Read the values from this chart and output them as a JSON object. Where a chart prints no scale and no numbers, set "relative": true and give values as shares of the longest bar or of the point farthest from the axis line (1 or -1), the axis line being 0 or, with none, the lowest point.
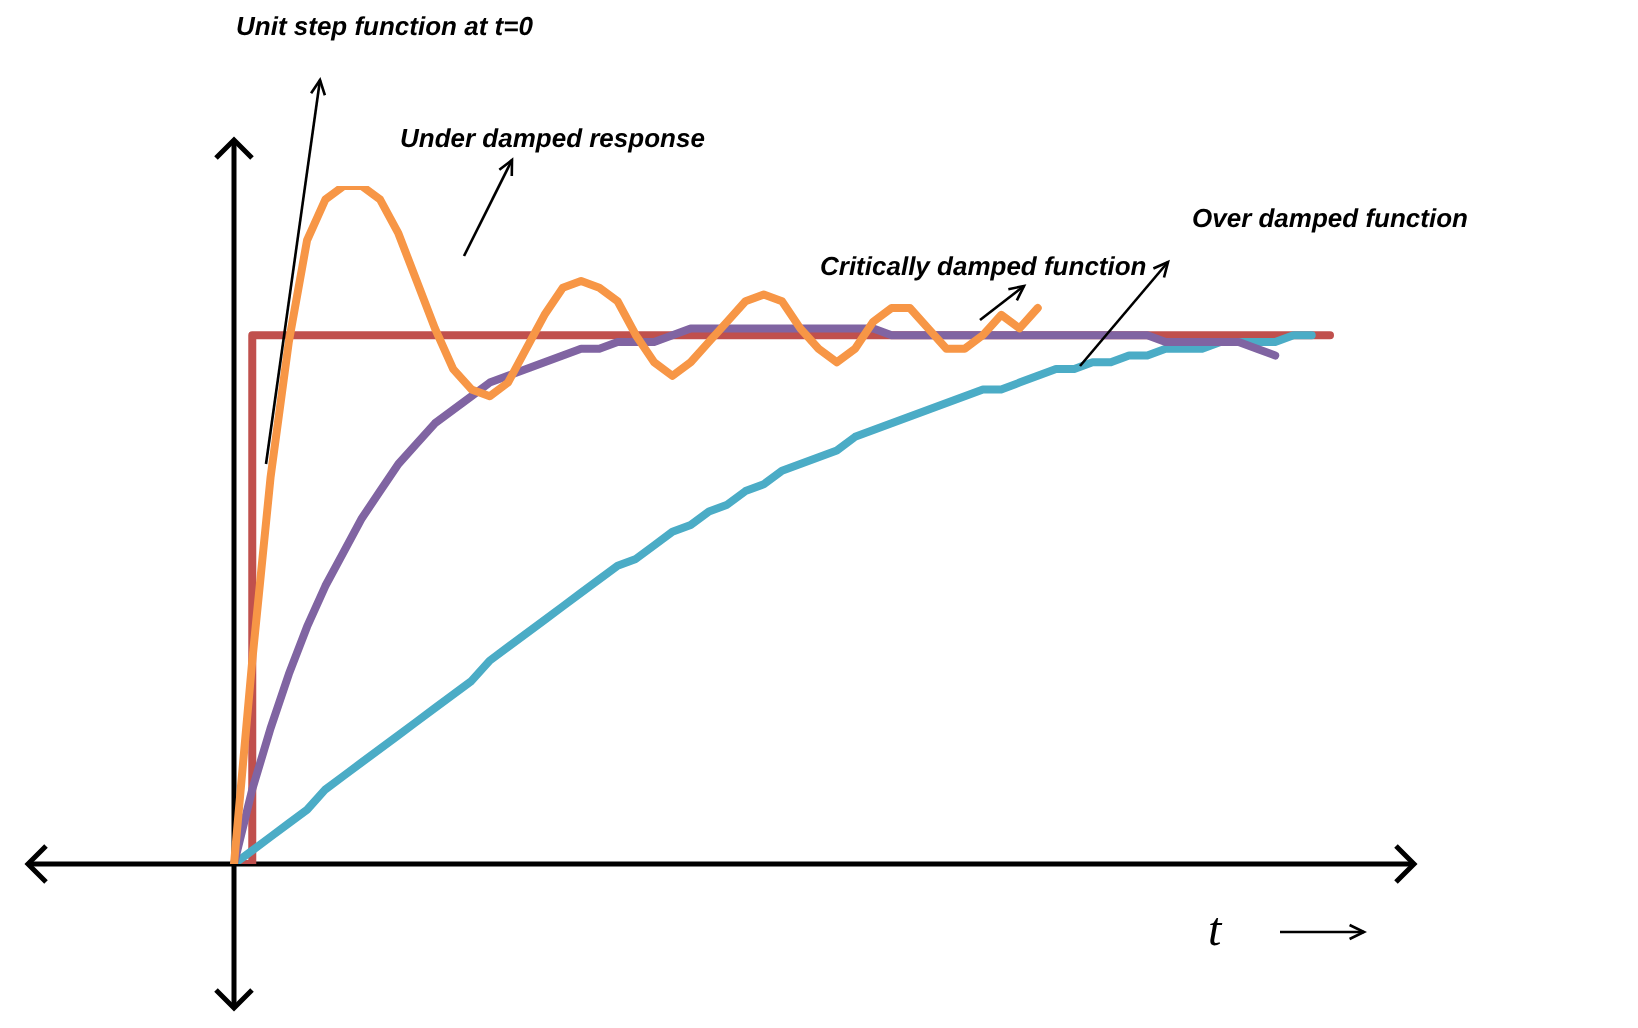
{
  "chart_data": {
    "type": "line",
    "relative": true,
    "marker": "none",
    "legend": false,
    "xlabel": "t",
    "categories": [
      null,
      null,
      null,
      null,
      null,
      null,
      null,
      null,
      null,
      null,
      null,
      null,
      null,
      null,
      null,
      null,
      null,
      null,
      null,
      null,
      null,
      null,
      null,
      null,
      null,
      null,
      null,
      null,
      null,
      null,
      null,
      null,
      null,
      null,
      null,
      null,
      null,
      null,
      null,
      null,
      null,
      null,
      null,
      null,
      null,
      null,
      null,
      null,
      null,
      null,
      null,
      null,
      null,
      null,
      null,
      null,
      null,
      null,
      null,
      null,
      null
    ],
    "series": [
      {
        "type": "step",
        "color": "#c0504d",
        "values": [
          0,
          0.78,
          0.78,
          0.78,
          0.78,
          0.78,
          0.78,
          0.78,
          0.78,
          0.78,
          0.78,
          0.78,
          0.78,
          0.78,
          0.78,
          0.78,
          0.78,
          0.78,
          0.78,
          0.78,
          0.78,
          0.78,
          0.78,
          0.78,
          0.78,
          0.78,
          0.78,
          0.78,
          0.78,
          0.78,
          0.78,
          0.78,
          0.78,
          0.78,
          0.78,
          0.78,
          0.78,
          0.78,
          0.78,
          0.78,
          0.78,
          0.78,
          0.78,
          0.78,
          0.78,
          0.78,
          0.78,
          0.78,
          0.78,
          0.78,
          0.78,
          0.78,
          0.78,
          0.78,
          0.78,
          0.78,
          0.78,
          0.78,
          0.78,
          0.78,
          0.78
        ]
      },
      {
        "color": "#4bacc6",
        "values": [
          0,
          0.02,
          0.04,
          0.06,
          0.08,
          0.11,
          0.13,
          0.15,
          0.17,
          0.19,
          0.21,
          0.23,
          0.25,
          0.27,
          0.3,
          0.32,
          0.34,
          0.36,
          0.38,
          0.4,
          0.42,
          0.44,
          0.45,
          0.47,
          0.49,
          0.5,
          0.52,
          0.53,
          0.55,
          0.56,
          0.58,
          0.59,
          0.6,
          0.61,
          0.63,
          0.64,
          0.65,
          0.66,
          0.67,
          0.68,
          0.69,
          0.7,
          0.7,
          0.71,
          0.72,
          0.73,
          0.73,
          0.74,
          0.74,
          0.75,
          0.75,
          0.76,
          0.76,
          0.76,
          0.77,
          0.77,
          0.77,
          0.77,
          0.78,
          0.78,
          null
        ]
      },
      {
        "color": "#8064a2",
        "values": [
          0,
          0.11,
          0.2,
          0.28,
          0.35,
          0.41,
          0.46,
          0.51,
          0.55,
          0.59,
          0.62,
          0.65,
          0.67,
          0.69,
          0.71,
          0.72,
          0.73,
          0.74,
          0.75,
          0.76,
          0.76,
          0.77,
          0.77,
          0.77,
          0.78,
          0.79,
          0.79,
          0.79,
          0.79,
          0.79,
          0.79,
          0.79,
          0.79,
          0.79,
          0.79,
          0.79,
          0.78,
          0.78,
          0.78,
          0.78,
          0.78,
          0.78,
          0.78,
          0.78,
          0.78,
          0.78,
          0.78,
          0.78,
          0.78,
          0.78,
          0.78,
          0.77,
          0.77,
          0.77,
          0.77,
          0.77,
          0.76,
          0.75,
          null,
          null,
          null
        ]
      },
      {
        "color": "#f79646",
        "values": [
          0,
          0.3,
          0.57,
          0.77,
          0.92,
          0.98,
          1,
          1,
          0.98,
          0.93,
          0.86,
          0.79,
          0.73,
          0.7,
          0.69,
          0.71,
          0.76,
          0.81,
          0.85,
          0.86,
          0.85,
          0.83,
          0.78,
          0.74,
          0.72,
          0.74,
          0.77,
          0.8,
          0.83,
          0.84,
          0.83,
          0.79,
          0.76,
          0.74,
          0.76,
          0.8,
          0.82,
          0.82,
          0.79,
          0.76,
          0.76,
          0.78,
          0.81,
          0.79,
          0.82,
          null,
          null,
          null,
          null,
          null,
          null,
          null,
          null,
          null,
          null,
          null,
          null,
          null,
          null,
          null,
          null
        ]
      }
    ],
    "annotations": [
      "Unit step function at t=0",
      "Under damped response",
      "Critically damped function",
      "Over damped function"
    ]
  }
}
